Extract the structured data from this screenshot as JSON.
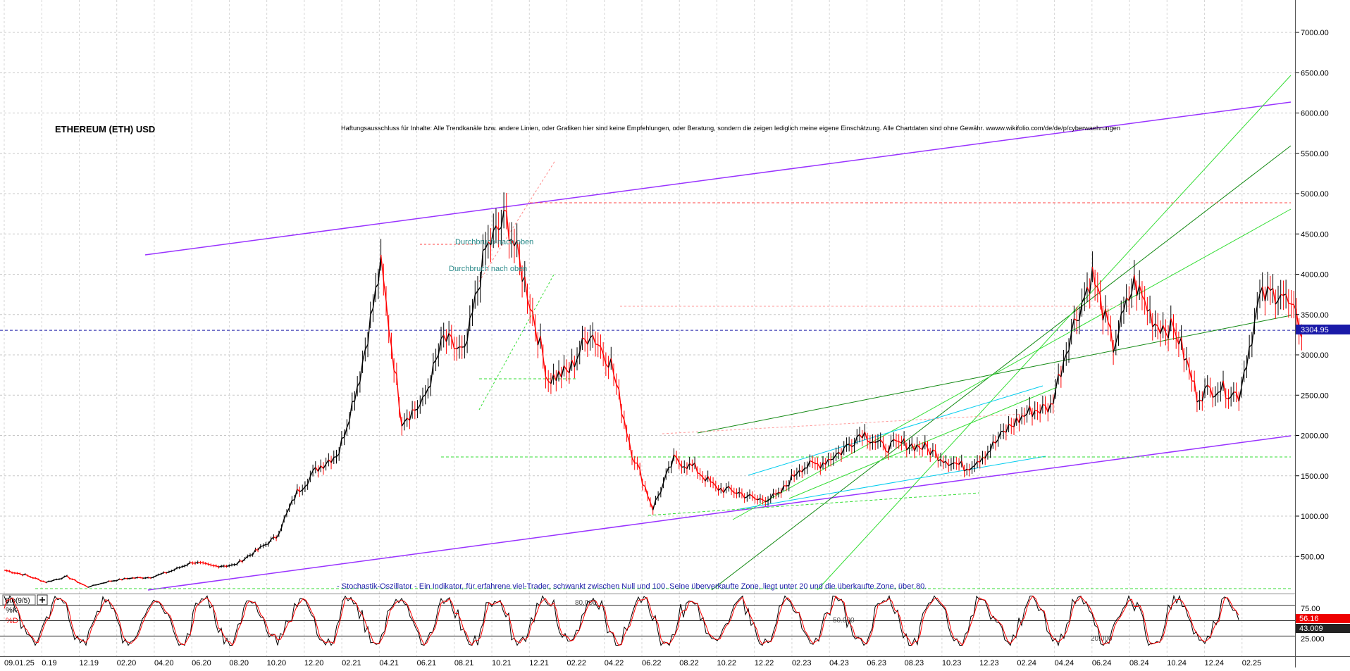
{
  "chart_data": {
    "type": "line",
    "title": "ETHEREUM (ETH) USD",
    "disclaimer": "Haftungsausschluss für Inhalte: Alle Trendkanäle bzw. andere Linien, oder Grafiken hier sind keine Empfehlungen, oder Beratung, sondern die zeigen lediglich meine eigene Einschätzung. Alle Chartdaten sind ohne Gewähr. wwww.wikifolio.com/de/de/p/cyberwaehrungen",
    "price_axis": {
      "ticks": [
        500,
        1000,
        1500,
        2000,
        2500,
        3000,
        3500,
        4000,
        4500,
        5000,
        5500,
        6000,
        6500,
        7000
      ],
      "tick_labels": [
        "500.00",
        "1000.00",
        "1500.00",
        "2000.00",
        "2500.00",
        "3000.00",
        "3500.00",
        "4000.00",
        "4500.00",
        "5000.00",
        "5500.00",
        "6000.00",
        "6500.00",
        "7000.00"
      ],
      "ylim": [
        0,
        7400
      ],
      "current_price": 3304.95,
      "current_price_label": "3304.95"
    },
    "x_axis": {
      "tick_labels": [
        "09.01.25",
        "0.19",
        "12.19",
        "02.20",
        "04.20",
        "06.20",
        "08.20",
        "10.20",
        "12.20",
        "02.21",
        "04.21",
        "06.21",
        "08.21",
        "10.21",
        "12.21",
        "02.22",
        "04.22",
        "06.22",
        "08.22",
        "10.22",
        "12.22",
        "02.23",
        "04.23",
        "06.23",
        "08.23",
        "10.23",
        "12.23",
        "02.24",
        "04.24",
        "06.24",
        "08.24",
        "10.24",
        "12.24",
        "02.25"
      ]
    },
    "series": [
      {
        "name": "ETH",
        "x": [
          "2019-11",
          "2019-12",
          "2020-01",
          "2020-02",
          "2020-03",
          "2020-04",
          "2020-05",
          "2020-06",
          "2020-07",
          "2020-08",
          "2020-09",
          "2020-10",
          "2020-11",
          "2020-12",
          "2021-01",
          "2021-02",
          "2021-03",
          "2021-04",
          "2021-05",
          "2021-06",
          "2021-07",
          "2021-08",
          "2021-09",
          "2021-10",
          "2021-11",
          "2021-12",
          "2022-01",
          "2022-02",
          "2022-03",
          "2022-04",
          "2022-05",
          "2022-06",
          "2022-07",
          "2022-08",
          "2022-09",
          "2022-10",
          "2022-11",
          "2022-12",
          "2023-01",
          "2023-02",
          "2023-03",
          "2023-04",
          "2023-05",
          "2023-06",
          "2023-07",
          "2023-08",
          "2023-09",
          "2023-10",
          "2023-11",
          "2023-12",
          "2024-01",
          "2024-02",
          "2024-03",
          "2024-04",
          "2024-05",
          "2024-06",
          "2024-07",
          "2024-08",
          "2024-09",
          "2024-10",
          "2024-11",
          "2024-12",
          "2025-01"
        ],
        "values": [
          330,
          270,
          180,
          250,
          120,
          190,
          230,
          240,
          320,
          430,
          380,
          390,
          560,
          740,
          1300,
          1600,
          1800,
          2750,
          4100,
          2200,
          2400,
          3200,
          3000,
          4300,
          4700,
          3800,
          2700,
          2800,
          3300,
          2900,
          1800,
          1100,
          1700,
          1600,
          1350,
          1300,
          1200,
          1250,
          1600,
          1650,
          1800,
          2050,
          1850,
          1900,
          1850,
          1700,
          1600,
          1800,
          2100,
          2300,
          2350,
          3300,
          4000,
          3100,
          3900,
          3400,
          3300,
          2500,
          2600,
          2500,
          3700,
          3800,
          3305
        ]
      }
    ],
    "annotations": [
      "Durchbruch nach oben",
      "Durchbruch nach oben"
    ],
    "oscillator": {
      "title": "Sto(9/5)",
      "caption": "- Stochastik-Oszillator - Ein Indikator, für erfahrene viel-Trader, schwankt zwischen Null und 100. Seine überverkaufte Zone, liegt unter 20 und die überkaufte Zone, über 80.",
      "k_label": "%K",
      "d_label": "%D",
      "level_labels": [
        "80.000",
        "50.000",
        "20.000"
      ],
      "axis_ticks": [
        25,
        75
      ],
      "axis_tick_labels": [
        "25.000",
        "75.00"
      ],
      "k_value": 56.16,
      "k_value_label": "56.16",
      "d_value": 43.009,
      "d_value_label": "43.009"
    },
    "colors": {
      "price_up": "#000000",
      "price_down": "#ff0000",
      "channel": "#9933ff",
      "trend_light": "#33dd33",
      "trend_dark": "#118811",
      "cyan": "#00ccee",
      "current_price_bg": "#1a1aa8",
      "k_bg": "#ee0000",
      "d_bg": "#222222"
    }
  }
}
